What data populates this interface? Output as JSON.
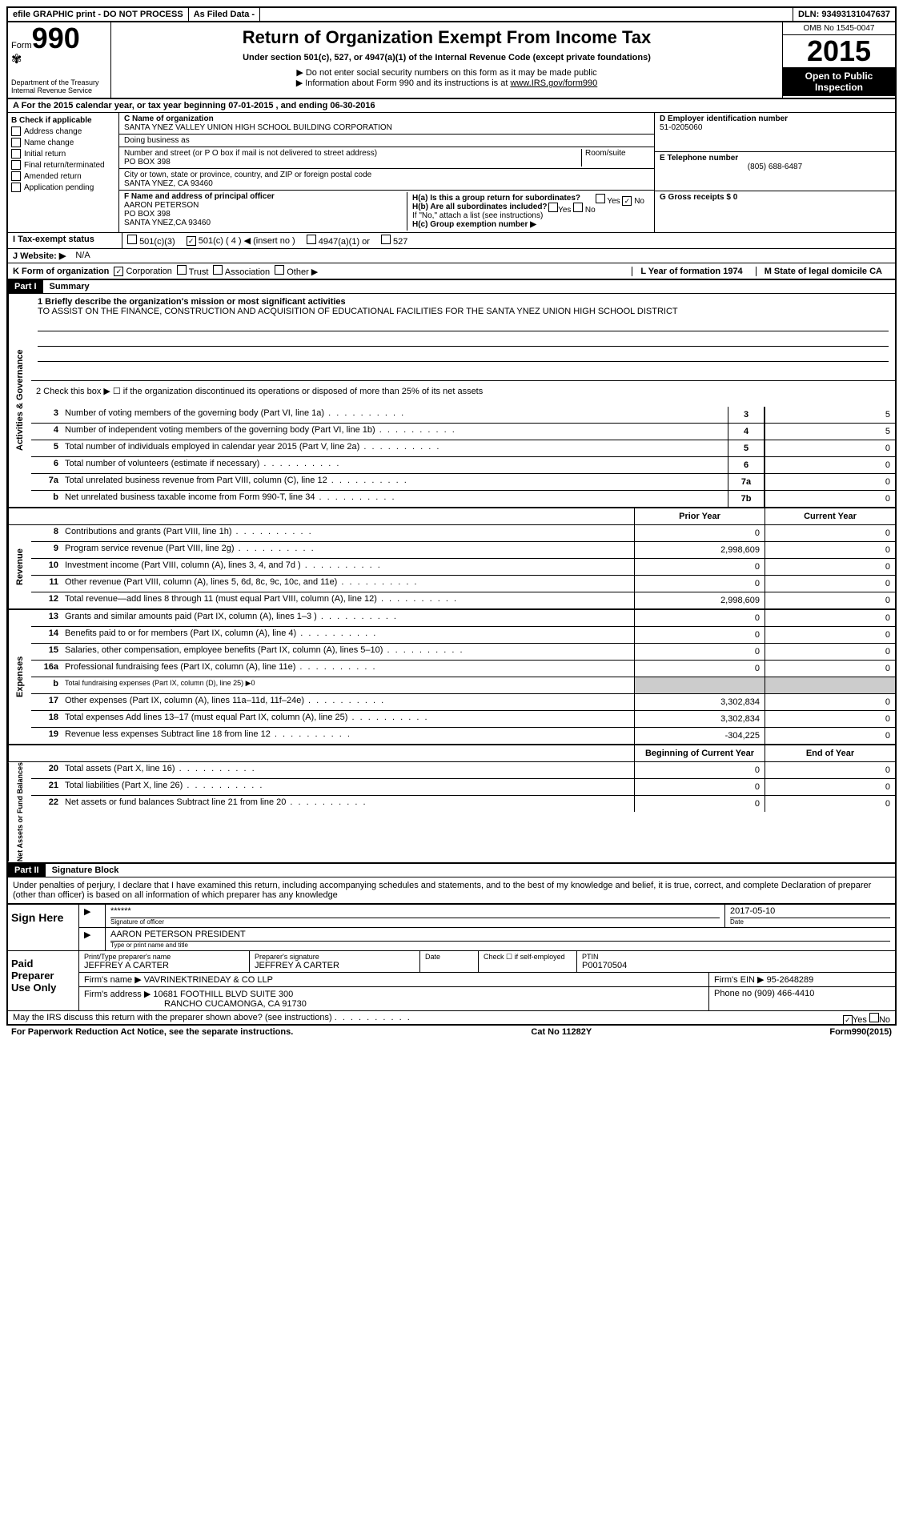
{
  "topbar": {
    "efile": "efile GRAPHIC print - DO NOT PROCESS",
    "asfiled": "As Filed Data -",
    "dln": "DLN: 93493131047637"
  },
  "header": {
    "form_label": "Form",
    "form_number": "990",
    "dept": "Department of the Treasury",
    "irs": "Internal Revenue Service",
    "title": "Return of Organization Exempt From Income Tax",
    "subtitle": "Under section 501(c), 527, or 4947(a)(1) of the Internal Revenue Code (except private foundations)",
    "note1": "▶ Do not enter social security numbers on this form as it may be made public",
    "note2_pre": "▶ Information about Form 990 and its instructions is at ",
    "note2_link": "www.IRS.gov/form990",
    "omb": "OMB No 1545-0047",
    "year": "2015",
    "open": "Open to Public Inspection"
  },
  "rowA": {
    "text": "A  For the 2015 calendar year, or tax year beginning 07-01-2015   , and ending 06-30-2016"
  },
  "sectionB": {
    "title": "B  Check if applicable",
    "opts": [
      "Address change",
      "Name change",
      "Initial return",
      "Final return/terminated",
      "Amended return",
      "Application pending"
    ]
  },
  "sectionC": {
    "name_label": "C Name of organization",
    "name": "SANTA YNEZ VALLEY UNION HIGH SCHOOL BUILDING CORPORATION",
    "dba_label": "Doing business as",
    "street_label": "Number and street (or P O box if mail is not delivered to street address)",
    "room_label": "Room/suite",
    "street": "PO BOX 398",
    "city_label": "City or town, state or province, country, and ZIP or foreign postal code",
    "city": "SANTA YNEZ, CA  93460",
    "f_label": "F  Name and address of principal officer",
    "f_name": "AARON PETERSON",
    "f_addr1": "PO BOX 398",
    "f_addr2": "SANTA YNEZ,CA  93460"
  },
  "sectionD": {
    "label": "D Employer identification number",
    "ein": "51-0205060",
    "e_label": "E Telephone number",
    "phone": "(805) 688-6487",
    "g_label": "G Gross receipts $ 0"
  },
  "sectionH": {
    "ha": "H(a)  Is this a group return for subordinates?",
    "ha_ans": "No",
    "hb": "H(b)  Are all subordinates included?",
    "hb_note": "If \"No,\" attach a list  (see instructions)",
    "hc": "H(c)  Group exemption number ▶"
  },
  "rowI": {
    "label": "I  Tax-exempt status",
    "opt1": "501(c)(3)",
    "opt2": "501(c) ( 4 ) ◀ (insert no )",
    "opt3": "4947(a)(1) or",
    "opt4": "527"
  },
  "rowJ": {
    "label": "J  Website: ▶",
    "value": "N/A"
  },
  "rowK": {
    "label": "K Form of organization",
    "opts": [
      "Corporation",
      "Trust",
      "Association",
      "Other ▶"
    ],
    "l_label": "L Year of formation  1974",
    "m_label": "M State of legal domicile  CA"
  },
  "partI": {
    "label": "Part I",
    "title": "Summary",
    "q1": "1 Briefly describe the organization's mission or most significant activities",
    "mission": "TO ASSIST ON THE FINANCE, CONSTRUCTION AND ACQUISITION OF EDUCATIONAL FACILITIES FOR THE SANTA YNEZ UNION HIGH SCHOOL DISTRICT",
    "q2": "2  Check this box ▶ ☐ if the organization discontinued its operations or disposed of more than 25% of its net assets",
    "governance_rows": [
      {
        "num": "3",
        "desc": "Number of voting members of the governing body (Part VI, line 1a)",
        "ref": "3",
        "val": "5"
      },
      {
        "num": "4",
        "desc": "Number of independent voting members of the governing body (Part VI, line 1b)",
        "ref": "4",
        "val": "5"
      },
      {
        "num": "5",
        "desc": "Total number of individuals employed in calendar year 2015 (Part V, line 2a)",
        "ref": "5",
        "val": "0"
      },
      {
        "num": "6",
        "desc": "Total number of volunteers (estimate if necessary)",
        "ref": "6",
        "val": "0"
      },
      {
        "num": "7a",
        "desc": "Total unrelated business revenue from Part VIII, column (C), line 12",
        "ref": "7a",
        "val": "0"
      },
      {
        "num": "b",
        "desc": "Net unrelated business taxable income from Form 990-T, line 34",
        "ref": "7b",
        "val": "0"
      }
    ],
    "col_prior": "Prior Year",
    "col_current": "Current Year",
    "revenue_rows": [
      {
        "num": "8",
        "desc": "Contributions and grants (Part VIII, line 1h)",
        "prior": "0",
        "curr": "0"
      },
      {
        "num": "9",
        "desc": "Program service revenue (Part VIII, line 2g)",
        "prior": "2,998,609",
        "curr": "0"
      },
      {
        "num": "10",
        "desc": "Investment income (Part VIII, column (A), lines 3, 4, and 7d )",
        "prior": "0",
        "curr": "0"
      },
      {
        "num": "11",
        "desc": "Other revenue (Part VIII, column (A), lines 5, 6d, 8c, 9c, 10c, and 11e)",
        "prior": "0",
        "curr": "0"
      },
      {
        "num": "12",
        "desc": "Total revenue—add lines 8 through 11 (must equal Part VIII, column (A), line 12)",
        "prior": "2,998,609",
        "curr": "0"
      }
    ],
    "expense_rows": [
      {
        "num": "13",
        "desc": "Grants and similar amounts paid (Part IX, column (A), lines 1–3 )",
        "prior": "0",
        "curr": "0"
      },
      {
        "num": "14",
        "desc": "Benefits paid to or for members (Part IX, column (A), line 4)",
        "prior": "0",
        "curr": "0"
      },
      {
        "num": "15",
        "desc": "Salaries, other compensation, employee benefits (Part IX, column (A), lines 5–10)",
        "prior": "0",
        "curr": "0"
      },
      {
        "num": "16a",
        "desc": "Professional fundraising fees (Part IX, column (A), line 11e)",
        "prior": "0",
        "curr": "0"
      },
      {
        "num": "b",
        "desc": "Total fundraising expenses (Part IX, column (D), line 25) ▶0",
        "prior": "",
        "curr": ""
      },
      {
        "num": "17",
        "desc": "Other expenses (Part IX, column (A), lines 11a–11d, 11f–24e)",
        "prior": "3,302,834",
        "curr": "0"
      },
      {
        "num": "18",
        "desc": "Total expenses  Add lines 13–17 (must equal Part IX, column (A), line 25)",
        "prior": "3,302,834",
        "curr": "0"
      },
      {
        "num": "19",
        "desc": "Revenue less expenses  Subtract line 18 from line 12",
        "prior": "-304,225",
        "curr": "0"
      }
    ],
    "col_begin": "Beginning of Current Year",
    "col_end": "End of Year",
    "assets_rows": [
      {
        "num": "20",
        "desc": "Total assets (Part X, line 16)",
        "prior": "0",
        "curr": "0"
      },
      {
        "num": "21",
        "desc": "Total liabilities (Part X, line 26)",
        "prior": "0",
        "curr": "0"
      },
      {
        "num": "22",
        "desc": "Net assets or fund balances  Subtract line 21 from line 20",
        "prior": "0",
        "curr": "0"
      }
    ],
    "side_gov": "Activities & Governance",
    "side_rev": "Revenue",
    "side_exp": "Expenses",
    "side_net": "Net Assets or Fund Balances"
  },
  "partII": {
    "label": "Part II",
    "title": "Signature Block",
    "perjury": "Under penalties of perjury, I declare that I have examined this return, including accompanying schedules and statements, and to the best of my knowledge and belief, it is true, correct, and complete  Declaration of preparer (other than officer) is based on all information of which preparer has any knowledge",
    "sign_here": "Sign Here",
    "sig_stars": "******",
    "sig_officer_label": "Signature of officer",
    "sig_date": "2017-05-10",
    "sig_date_label": "Date",
    "sig_name": "AARON PETERSON PRESIDENT",
    "sig_name_label": "Type or print name and title",
    "paid": "Paid Preparer Use Only",
    "prep_name_label": "Print/Type preparer's name",
    "prep_name": "JEFFREY A CARTER",
    "prep_sig_label": "Preparer's signature",
    "prep_sig": "JEFFREY A CARTER",
    "prep_date_label": "Date",
    "prep_check": "Check ☐ if self-employed",
    "ptin_label": "PTIN",
    "ptin": "P00170504",
    "firm_name_label": "Firm's name     ▶",
    "firm_name": "VAVRINEKTRINEDAY & CO LLP",
    "firm_ein_label": "Firm's EIN ▶",
    "firm_ein": "95-2648289",
    "firm_addr_label": "Firm's address ▶",
    "firm_addr1": "10681 FOOTHILL BLVD SUITE 300",
    "firm_addr2": "RANCHO CUCAMONGA, CA  91730",
    "firm_phone_label": "Phone no",
    "firm_phone": "(909) 466-4410",
    "discuss": "May the IRS discuss this return with the preparer shown above? (see instructions)",
    "yes": "Yes",
    "no": "No"
  },
  "footer": {
    "paperwork": "For Paperwork Reduction Act Notice, see the separate instructions.",
    "cat": "Cat No  11282Y",
    "form": "Form990(2015)"
  }
}
